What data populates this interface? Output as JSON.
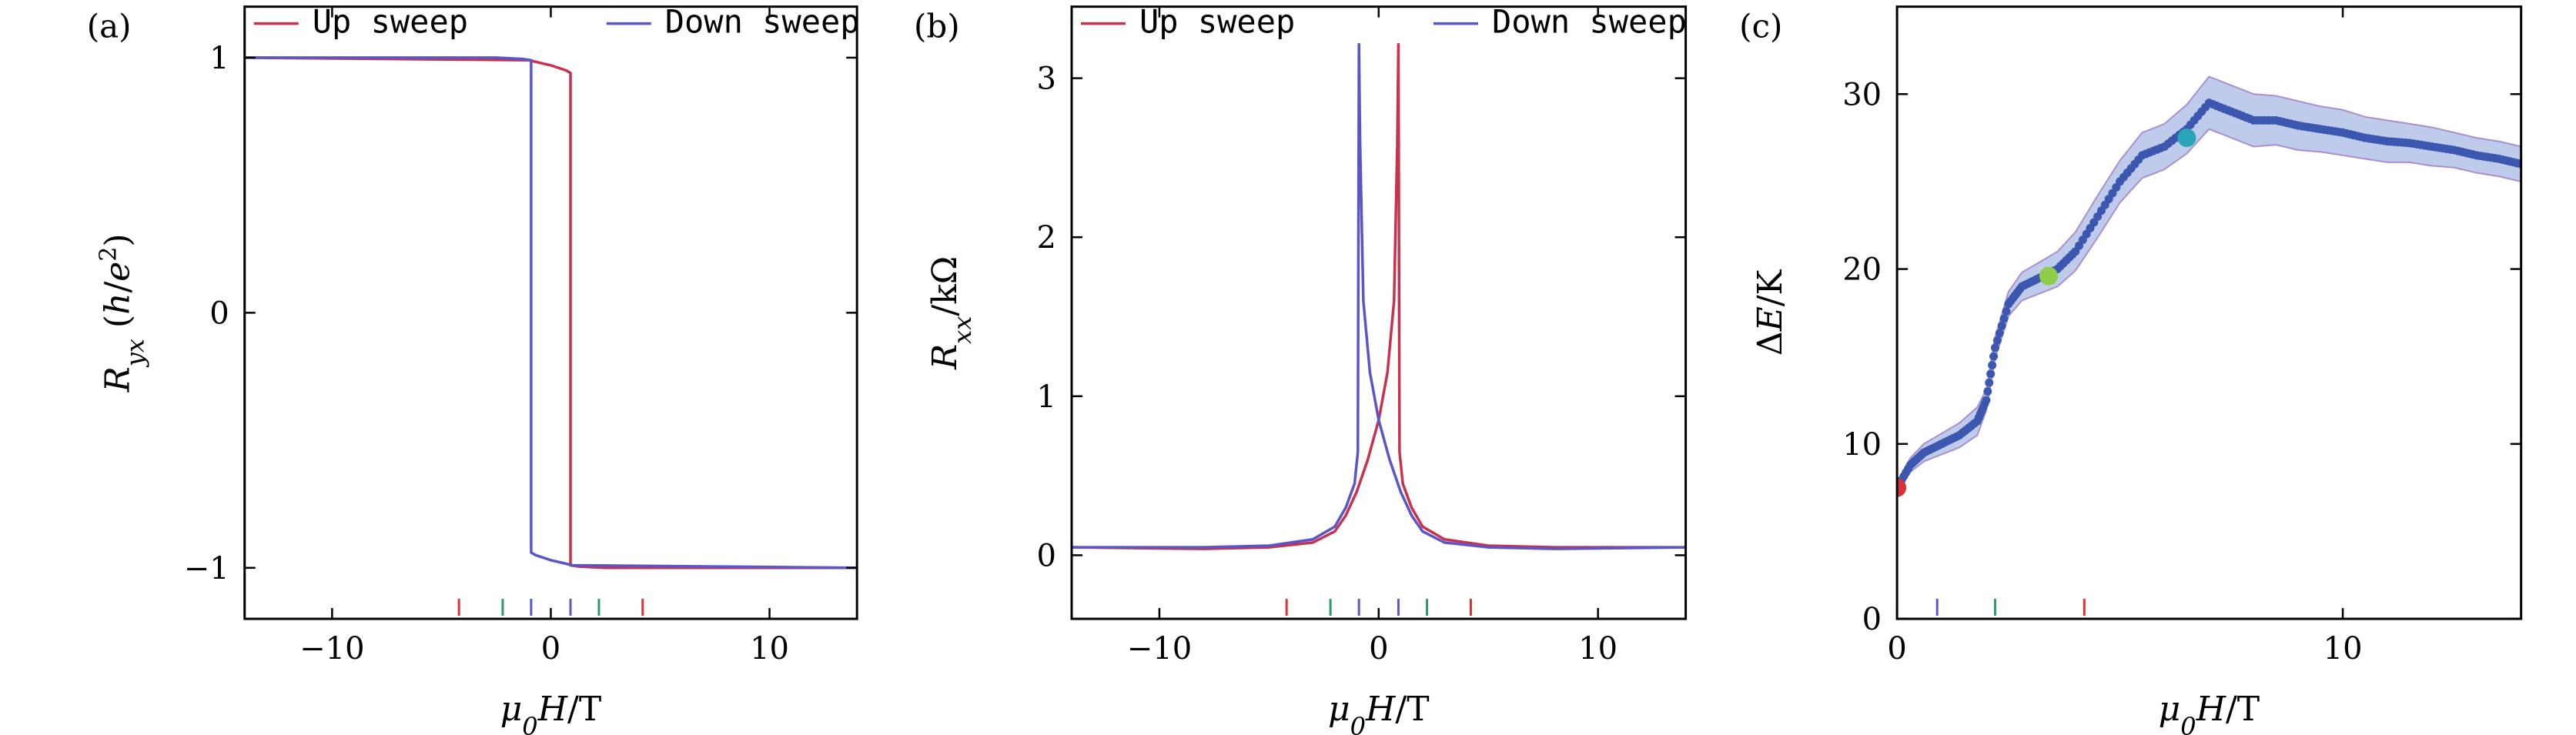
{
  "colors": {
    "up_sweep": "#c8324f",
    "down_sweep": "#5a55c8",
    "energy_points": "#3b57b0",
    "energy_band": "#8aa0d8",
    "marker_red": "#d9323a",
    "marker_green": "#2e9c6a"
  },
  "chart_data": [
    {
      "panel_label": "(a)",
      "type": "line",
      "xlabel": "μ0H/T",
      "ylabel": "Ryx (h/e²)",
      "xlim": [
        -14,
        14
      ],
      "ylim": [
        -1.2,
        1.2
      ],
      "xticks": [
        -10,
        0,
        10
      ],
      "xtick_labels": [
        "−10",
        "0",
        "10"
      ],
      "yticks": [
        -1,
        0,
        1
      ],
      "ytick_labels": [
        "−1",
        "0",
        "1"
      ],
      "legend": {
        "position": "top-right",
        "entries": [
          "Up sweep",
          "Down sweep"
        ]
      },
      "series": [
        {
          "name": "Up sweep",
          "color_key": "up_sweep",
          "x": [
            -14,
            -1.0,
            0.0,
            0.7,
            0.9,
            0.9,
            1.3,
            2.5,
            14
          ],
          "y": [
            1.0,
            0.99,
            0.97,
            0.95,
            0.94,
            -0.99,
            -0.995,
            -1.0,
            -1.0
          ]
        },
        {
          "name": "Down sweep",
          "color_key": "down_sweep",
          "x": [
            14,
            1.0,
            0.0,
            -0.7,
            -0.9,
            -0.9,
            -1.3,
            -2.5,
            -14
          ],
          "y": [
            -1.0,
            -0.99,
            -0.97,
            -0.95,
            -0.94,
            0.99,
            0.995,
            1.0,
            1.0
          ]
        }
      ],
      "tick_markers": [
        {
          "x": -4.2,
          "color_key": "marker_red"
        },
        {
          "x": -2.2,
          "color_key": "marker_green"
        },
        {
          "x": -0.9,
          "color_key": "down_sweep"
        },
        {
          "x": 0.9,
          "color_key": "down_sweep"
        },
        {
          "x": 2.2,
          "color_key": "marker_green"
        },
        {
          "x": 4.2,
          "color_key": "marker_red"
        }
      ]
    },
    {
      "panel_label": "(b)",
      "type": "line",
      "xlabel": "μ0H/T",
      "ylabel": "Rxx/kΩ",
      "xlim": [
        -14,
        14
      ],
      "ylim": [
        -0.4,
        3.45
      ],
      "xticks": [
        -10,
        0,
        10
      ],
      "xtick_labels": [
        "−10",
        "0",
        "10"
      ],
      "yticks": [
        0,
        1,
        2,
        3
      ],
      "ytick_labels": [
        "0",
        "1",
        "2",
        "3"
      ],
      "legend": {
        "position": "top-right",
        "entries": [
          "Up sweep",
          "Down sweep"
        ]
      },
      "series": [
        {
          "name": "Up sweep",
          "color_key": "up_sweep",
          "x": [
            -14,
            -8,
            -5,
            -3,
            -2,
            -1.5,
            -1.0,
            -0.5,
            0,
            0.4,
            0.7,
            0.85,
            0.9,
            0.95,
            1.1,
            1.5,
            2,
            3,
            5,
            8,
            14
          ],
          "y": [
            0.05,
            0.04,
            0.05,
            0.08,
            0.15,
            0.25,
            0.4,
            0.6,
            0.85,
            1.15,
            1.6,
            2.6,
            3.22,
            0.65,
            0.45,
            0.3,
            0.18,
            0.1,
            0.06,
            0.05,
            0.05
          ]
        },
        {
          "name": "Down sweep",
          "color_key": "down_sweep",
          "x": [
            14,
            8,
            5,
            3,
            2,
            1.5,
            1.0,
            0.5,
            0,
            -0.4,
            -0.7,
            -0.85,
            -0.9,
            -0.95,
            -1.1,
            -1.5,
            -2,
            -3,
            -5,
            -8,
            -14
          ],
          "y": [
            0.05,
            0.04,
            0.05,
            0.08,
            0.15,
            0.25,
            0.4,
            0.6,
            0.85,
            1.15,
            1.6,
            2.6,
            3.22,
            0.65,
            0.45,
            0.3,
            0.18,
            0.1,
            0.06,
            0.05,
            0.05
          ]
        }
      ],
      "tick_markers": [
        {
          "x": -4.2,
          "color_key": "marker_red"
        },
        {
          "x": -2.2,
          "color_key": "marker_green"
        },
        {
          "x": -0.9,
          "color_key": "down_sweep"
        },
        {
          "x": 0.9,
          "color_key": "down_sweep"
        },
        {
          "x": 2.2,
          "color_key": "marker_green"
        },
        {
          "x": 4.2,
          "color_key": "marker_red"
        }
      ]
    },
    {
      "panel_label": "(c)",
      "type": "scatter",
      "xlabel": "μ0H/T",
      "ylabel": "ΔE/K",
      "xlim": [
        0,
        14
      ],
      "ylim": [
        0,
        35
      ],
      "xticks": [
        0,
        10
      ],
      "xtick_labels": [
        "0",
        "10"
      ],
      "yticks": [
        0,
        10,
        20,
        30
      ],
      "ytick_labels": [
        "0",
        "10",
        "20",
        "30"
      ],
      "series": [
        {
          "color_key": "energy_points",
          "x": [
            0,
            0.3,
            0.6,
            1.0,
            1.4,
            1.8,
            2.0,
            2.2,
            2.5,
            2.8,
            3.2,
            3.6,
            4.0,
            4.5,
            5.0,
            5.5,
            6.0,
            6.5,
            7.0,
            7.5,
            8.0,
            8.5,
            9.0,
            9.5,
            10.0,
            10.5,
            11.0,
            11.5,
            12.0,
            12.5,
            13.0,
            13.5,
            14.0
          ],
          "y": [
            7.5,
            8.8,
            9.5,
            10.0,
            10.5,
            11.3,
            12.5,
            15.5,
            18.0,
            19.0,
            19.5,
            20.0,
            21.0,
            23.0,
            25.0,
            26.5,
            27.0,
            28.0,
            29.5,
            29.0,
            28.5,
            28.5,
            28.2,
            28.0,
            27.8,
            27.5,
            27.3,
            27.2,
            27.0,
            26.8,
            26.5,
            26.3,
            26.0
          ]
        }
      ],
      "band_halfwidth": [
        0.3,
        0.4,
        0.5,
        0.6,
        0.7,
        0.8,
        0.6,
        0.6,
        0.7,
        0.8,
        0.9,
        1.0,
        1.1,
        1.2,
        1.2,
        1.3,
        1.3,
        1.4,
        1.5,
        1.5,
        1.5,
        1.4,
        1.4,
        1.3,
        1.3,
        1.2,
        1.2,
        1.1,
        1.1,
        1.0,
        1.0,
        1.0,
        1.0
      ],
      "highlighted_points": [
        {
          "x": 0.0,
          "y": 7.5,
          "color": "#d9323a"
        },
        {
          "x": 3.4,
          "y": 19.6,
          "color": "#8fcc4a"
        },
        {
          "x": 6.5,
          "y": 27.5,
          "color": "#2aa6b8"
        }
      ],
      "tick_markers": [
        {
          "x": 0.9,
          "color_key": "down_sweep"
        },
        {
          "x": 2.2,
          "color_key": "marker_green"
        },
        {
          "x": 4.2,
          "color_key": "marker_red"
        }
      ]
    }
  ]
}
